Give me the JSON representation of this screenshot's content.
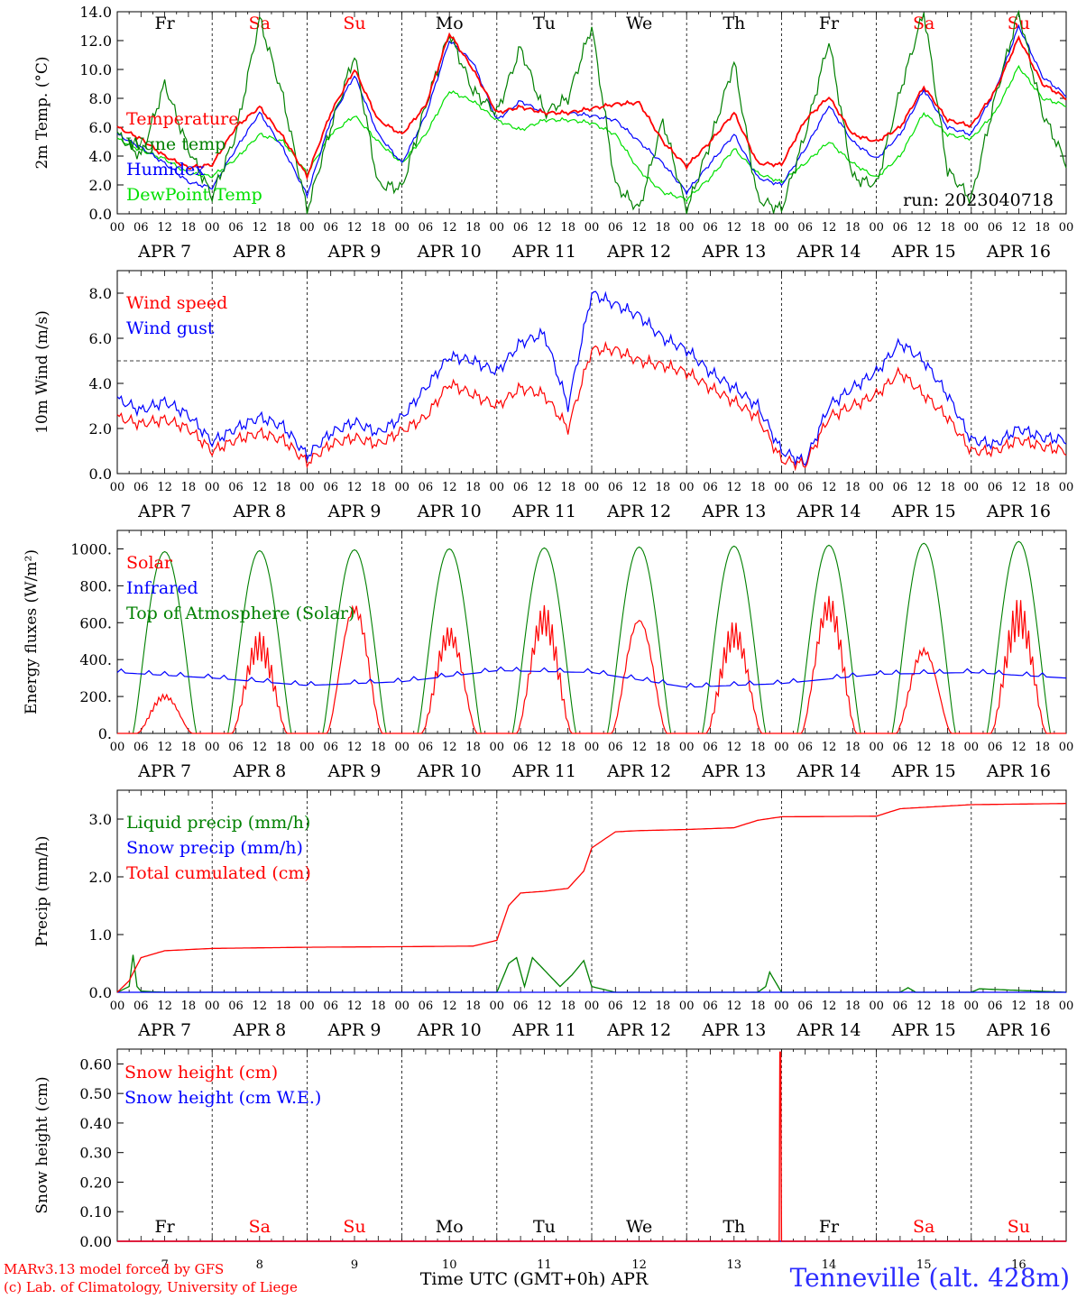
{
  "run_label": "run: 2023040718",
  "footer": {
    "model": "MARv3.13 model forced by GFS",
    "credit": "(c) Lab. of Climatology, University of Liege",
    "location": "Tenneville (alt. 428m)",
    "time_axis_label": "Time UTC (GMT+0h) APR"
  },
  "hour_ticks": [
    "00",
    "06",
    "12",
    "18"
  ],
  "days": [
    {
      "label": "APR  7",
      "short": "7",
      "weekday": "Fr",
      "weekend": false
    },
    {
      "label": "APR  8",
      "short": "8",
      "weekday": "Sa",
      "weekend": true
    },
    {
      "label": "APR  9",
      "short": "9",
      "weekday": "Su",
      "weekend": true
    },
    {
      "label": "APR 10",
      "short": "10",
      "weekday": "Mo",
      "weekend": false
    },
    {
      "label": "APR 11",
      "short": "11",
      "weekday": "Tu",
      "weekend": false
    },
    {
      "label": "APR 12",
      "short": "12",
      "weekday": "We",
      "weekend": false
    },
    {
      "label": "APR 13",
      "short": "13",
      "weekday": "Th",
      "weekend": false
    },
    {
      "label": "APR 14",
      "short": "14",
      "weekday": "Fr",
      "weekend": false
    },
    {
      "label": "APR 15",
      "short": "15",
      "weekday": "Sa",
      "weekend": true
    },
    {
      "label": "APR 16",
      "short": "16",
      "weekday": "Su",
      "weekend": true
    }
  ],
  "colors": {
    "red": "#ff0000",
    "blue": "#0000ff",
    "green": "#008000",
    "lime": "#00e000",
    "weekday_text": "#000000"
  },
  "chart_data": [
    {
      "type": "line",
      "ylabel": "2m Temp. (°C)",
      "ylim": [
        0,
        14
      ],
      "yticks": [
        "0.0",
        "2.0",
        "4.0",
        "6.0",
        "8.0",
        "10.0",
        "12.0",
        "14.0"
      ],
      "x_unit": "hours since APR 7 00 UTC",
      "series": [
        {
          "name": "Temperature",
          "color": "#ff0000",
          "x": [
            0,
            6,
            12,
            18,
            24,
            30,
            36,
            42,
            48,
            54,
            60,
            66,
            72,
            78,
            84,
            90,
            96,
            102,
            108,
            114,
            120,
            126,
            132,
            138,
            144,
            150,
            156,
            162,
            168,
            174,
            180,
            186,
            192,
            198,
            204,
            210,
            216,
            222,
            228,
            234,
            240
          ],
          "y": [
            6.0,
            5.2,
            4.0,
            3.2,
            3.4,
            6.0,
            7.4,
            5.3,
            2.6,
            7.0,
            10.0,
            6.5,
            5.5,
            7.5,
            12.5,
            10.0,
            7.0,
            7.4,
            7.0,
            7.0,
            7.3,
            7.6,
            7.7,
            5.0,
            3.3,
            5.0,
            7.0,
            3.5,
            3.4,
            6.5,
            8.1,
            5.5,
            5.0,
            6.0,
            8.8,
            6.5,
            6.1,
            8.5,
            12.2,
            9.0,
            8.0
          ]
        },
        {
          "name": "Wgne temp",
          "color": "#008000",
          "x": [
            0,
            6,
            12,
            18,
            24,
            30,
            36,
            42,
            48,
            54,
            60,
            66,
            72,
            78,
            84,
            90,
            96,
            102,
            108,
            114,
            120,
            126,
            132,
            138,
            144,
            150,
            156,
            162,
            168,
            174,
            180,
            186,
            192,
            198,
            204,
            210,
            216,
            222,
            228,
            234,
            240
          ],
          "y": [
            5.5,
            4.0,
            9.0,
            4.5,
            1.2,
            5.5,
            13.5,
            8.0,
            0.2,
            6.0,
            11.0,
            2.0,
            1.8,
            7.5,
            12.5,
            8.5,
            7.0,
            11.5,
            7.0,
            8.0,
            13.0,
            2.0,
            0.3,
            6.5,
            0.2,
            5.0,
            10.5,
            1.0,
            0.3,
            5.5,
            12.0,
            2.5,
            2.0,
            8.5,
            14.0,
            3.0,
            1.0,
            8.0,
            14.0,
            7.0,
            3.5
          ]
        },
        {
          "name": "Humidex",
          "color": "#0000ff",
          "x": [
            0,
            6,
            12,
            18,
            24,
            30,
            36,
            42,
            48,
            54,
            60,
            66,
            72,
            78,
            84,
            90,
            96,
            102,
            108,
            114,
            120,
            126,
            132,
            138,
            144,
            150,
            156,
            162,
            168,
            174,
            180,
            186,
            192,
            198,
            204,
            210,
            216,
            222,
            228,
            234,
            240
          ],
          "y": [
            5.5,
            4.6,
            3.5,
            2.2,
            1.8,
            4.5,
            7.0,
            4.5,
            1.3,
            6.5,
            9.6,
            5.5,
            3.5,
            6.8,
            12.0,
            10.5,
            6.5,
            7.8,
            7.0,
            7.0,
            6.8,
            6.5,
            5.0,
            3.5,
            1.5,
            3.5,
            5.5,
            2.5,
            2.0,
            4.5,
            7.5,
            5.0,
            3.8,
            5.5,
            8.6,
            6.0,
            5.5,
            8.5,
            13.0,
            9.5,
            8.2
          ]
        },
        {
          "name": "DewPoint Temp",
          "color": "#00e000",
          "x": [
            0,
            6,
            12,
            18,
            24,
            30,
            36,
            42,
            48,
            54,
            60,
            66,
            72,
            78,
            84,
            90,
            96,
            102,
            108,
            114,
            120,
            126,
            132,
            138,
            144,
            150,
            156,
            162,
            168,
            174,
            180,
            186,
            192,
            198,
            204,
            210,
            216,
            222,
            228,
            234,
            240
          ],
          "y": [
            5.2,
            4.4,
            3.8,
            2.8,
            2.6,
            3.8,
            5.5,
            5.0,
            2.8,
            5.5,
            6.8,
            5.0,
            3.5,
            5.5,
            8.5,
            7.8,
            6.5,
            5.8,
            6.5,
            6.5,
            6.3,
            5.5,
            3.0,
            1.5,
            1.0,
            2.5,
            4.5,
            2.8,
            2.2,
            3.5,
            5.0,
            3.5,
            2.5,
            4.0,
            7.0,
            5.5,
            5.2,
            7.0,
            10.2,
            8.0,
            7.5
          ]
        }
      ]
    },
    {
      "type": "line",
      "ylabel": "10m Wind (m/s)",
      "ylim": [
        0,
        9
      ],
      "yticks": [
        "0.0",
        "2.0",
        "4.0",
        "6.0",
        "8.0"
      ],
      "reference_line": 5,
      "series": [
        {
          "name": "Wind speed",
          "color": "#ff0000",
          "x": [
            0,
            6,
            12,
            18,
            24,
            30,
            36,
            42,
            48,
            54,
            60,
            66,
            72,
            78,
            84,
            90,
            96,
            102,
            108,
            114,
            120,
            126,
            132,
            138,
            144,
            150,
            156,
            162,
            168,
            174,
            180,
            186,
            192,
            198,
            204,
            210,
            216,
            222,
            228,
            234,
            240
          ],
          "y": [
            2.5,
            2.2,
            2.4,
            2.0,
            1.0,
            1.5,
            1.8,
            1.5,
            0.5,
            1.3,
            1.6,
            1.3,
            1.9,
            2.5,
            4.0,
            3.5,
            3.0,
            3.8,
            3.5,
            2.0,
            5.5,
            5.5,
            5.0,
            4.8,
            4.5,
            3.8,
            3.2,
            2.5,
            0.6,
            0.4,
            2.5,
            3.0,
            3.5,
            4.5,
            3.5,
            2.5,
            1.0,
            1.0,
            1.5,
            1.2,
            1.0
          ]
        },
        {
          "name": "Wind gust",
          "color": "#0000ff",
          "x": [
            0,
            6,
            12,
            18,
            24,
            30,
            36,
            42,
            48,
            54,
            60,
            66,
            72,
            78,
            84,
            90,
            96,
            102,
            108,
            114,
            120,
            126,
            132,
            138,
            144,
            150,
            156,
            162,
            168,
            174,
            180,
            186,
            192,
            198,
            204,
            210,
            216,
            222,
            228,
            234,
            240
          ],
          "y": [
            3.3,
            2.8,
            3.2,
            2.6,
            1.4,
            2.0,
            2.5,
            2.1,
            0.8,
            1.8,
            2.3,
            1.8,
            2.5,
            3.8,
            5.2,
            5.0,
            4.5,
            5.8,
            6.2,
            3.0,
            8.0,
            7.5,
            7.0,
            6.0,
            5.5,
            4.5,
            3.8,
            3.0,
            1.0,
            0.5,
            3.0,
            3.8,
            4.5,
            5.8,
            5.0,
            3.5,
            1.5,
            1.3,
            2.0,
            1.6,
            1.5
          ]
        }
      ]
    },
    {
      "type": "line",
      "ylabel": "Energy fluxes (W/m²)",
      "ylim": [
        0,
        1100
      ],
      "yticks": [
        "0.",
        "200.",
        "400.",
        "600.",
        "800.",
        "1000."
      ],
      "series": [
        {
          "name": "Solar",
          "color": "#ff0000",
          "daily_peak": [
            220,
            550,
            740,
            590,
            700,
            670,
            610,
            760,
            490,
            730
          ]
        },
        {
          "name": "Infrared",
          "color": "#0000ff",
          "x": [
            0,
            24,
            48,
            72,
            96,
            120,
            144,
            168,
            192,
            216,
            240
          ],
          "y": [
            330,
            300,
            260,
            280,
            340,
            330,
            250,
            270,
            320,
            330,
            300
          ]
        },
        {
          "name": "Top of Atmosphere (Solar)",
          "color": "#008000",
          "daily_peak": [
            985,
            990,
            995,
            1000,
            1005,
            1010,
            1015,
            1020,
            1030,
            1040
          ]
        }
      ]
    },
    {
      "type": "line",
      "ylabel": "Precip (mm/h)",
      "ylim": [
        0,
        3.5
      ],
      "yticks": [
        "0.0",
        "1.0",
        "2.0",
        "3.0"
      ],
      "series": [
        {
          "name": "Liquid precip (mm/h)",
          "color": "#008000",
          "x": [
            0,
            3,
            4,
            5,
            6,
            12,
            96,
            99,
            101,
            103,
            105,
            112,
            115,
            118,
            120,
            126,
            162,
            164,
            165,
            168,
            198,
            200,
            202,
            216,
            218,
            240
          ],
          "y": [
            0,
            0.1,
            0.65,
            0.1,
            0.02,
            0,
            0,
            0.5,
            0.6,
            0.1,
            0.6,
            0.1,
            0.3,
            0.55,
            0.1,
            0,
            0,
            0.1,
            0.35,
            0,
            0,
            0.08,
            0,
            0,
            0.06,
            0
          ]
        },
        {
          "name": "Snow precip (mm/h)",
          "color": "#0000ff",
          "x": [
            0,
            240
          ],
          "y": [
            0,
            0
          ]
        },
        {
          "name": "Total cumulated (cm)",
          "color": "#ff0000",
          "x": [
            0,
            3,
            6,
            12,
            24,
            48,
            72,
            90,
            96,
            99,
            102,
            108,
            114,
            118,
            120,
            126,
            132,
            144,
            156,
            162,
            168,
            192,
            198,
            216,
            240
          ],
          "y": [
            0,
            0.2,
            0.6,
            0.72,
            0.76,
            0.78,
            0.79,
            0.8,
            0.9,
            1.5,
            1.72,
            1.75,
            1.8,
            2.1,
            2.5,
            2.78,
            2.8,
            2.82,
            2.85,
            2.98,
            3.04,
            3.05,
            3.18,
            3.25,
            3.27
          ]
        }
      ]
    },
    {
      "type": "line",
      "ylabel": "Snow height (cm)",
      "ylim": [
        0,
        0.65
      ],
      "yticks": [
        "0.00",
        "0.10",
        "0.20",
        "0.30",
        "0.40",
        "0.50",
        "0.60"
      ],
      "series": [
        {
          "name": "Snow height (cm)",
          "color": "#ff0000",
          "x": [
            0,
            167.4,
            167.6,
            167.8,
            168.0,
            240
          ],
          "y": [
            0,
            0,
            0.64,
            0.64,
            0,
            0
          ]
        },
        {
          "name": "Snow height (cm W.E.)",
          "color": "#0000ff",
          "x": [
            0,
            240
          ],
          "y": [
            0,
            0
          ]
        }
      ]
    }
  ]
}
